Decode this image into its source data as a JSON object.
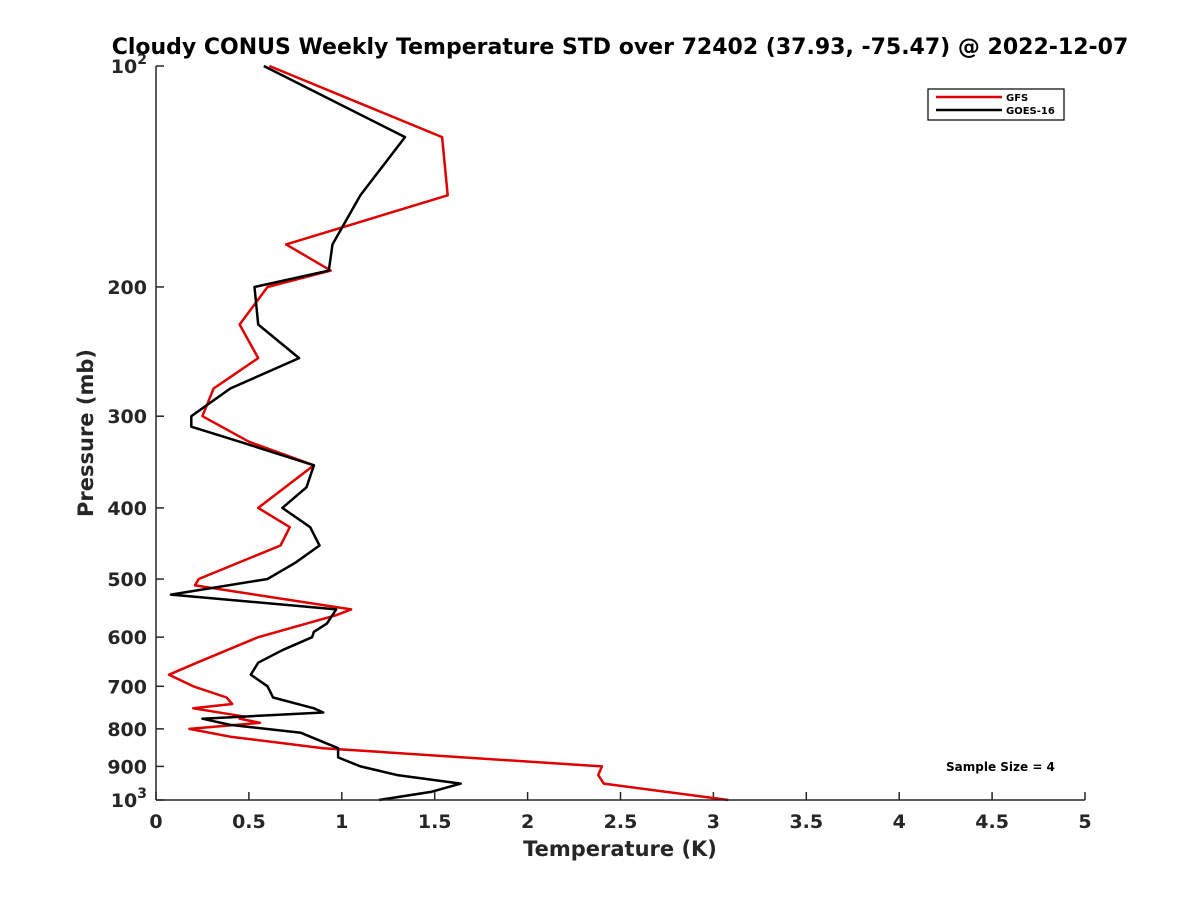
{
  "chart_data": {
    "type": "line",
    "title": "Cloudy CONUS Weekly Temperature STD over 72402 (37.93, -75.47) @ 2022-12-07",
    "xlabel": "Temperature (K)",
    "ylabel": "Pressure (mb)",
    "xlim": [
      0,
      5
    ],
    "ylim": [
      100,
      1000
    ],
    "yscale": "log",
    "y_reversed": true,
    "grid": false,
    "legend_position": "top-right",
    "x_ticks": [
      "0",
      "0.5",
      "1",
      "1.5",
      "2",
      "2.5",
      "3",
      "3.5",
      "4",
      "4.5",
      "5"
    ],
    "x_tick_values": [
      0,
      0.5,
      1,
      1.5,
      2,
      2.5,
      3,
      3.5,
      4,
      4.5,
      5
    ],
    "y_ticks": [
      {
        "value": 100,
        "base": "10",
        "exp": "2"
      },
      {
        "value": 200,
        "label": "200"
      },
      {
        "value": 300,
        "label": "300"
      },
      {
        "value": 400,
        "label": "400"
      },
      {
        "value": 500,
        "label": "500"
      },
      {
        "value": 600,
        "label": "600"
      },
      {
        "value": 700,
        "label": "700"
      },
      {
        "value": 800,
        "label": "800"
      },
      {
        "value": 900,
        "label": "900"
      },
      {
        "value": 1000,
        "base": "10",
        "exp": "3"
      }
    ],
    "annotation": "Sample Size = 4",
    "series": [
      {
        "name": "GFS",
        "color": "#e00000",
        "points": [
          [
            0.61,
            100
          ],
          [
            1.54,
            125
          ],
          [
            1.57,
            150
          ],
          [
            0.7,
            175
          ],
          [
            0.94,
            190
          ],
          [
            0.6,
            200
          ],
          [
            0.45,
            225
          ],
          [
            0.55,
            250
          ],
          [
            0.31,
            275
          ],
          [
            0.25,
            300
          ],
          [
            0.5,
            325
          ],
          [
            0.85,
            350
          ],
          [
            0.55,
            400
          ],
          [
            0.72,
            425
          ],
          [
            0.67,
            450
          ],
          [
            0.23,
            500
          ],
          [
            0.21,
            510
          ],
          [
            1.05,
            550
          ],
          [
            0.97,
            560
          ],
          [
            0.55,
            600
          ],
          [
            0.22,
            650
          ],
          [
            0.07,
            675
          ],
          [
            0.2,
            700
          ],
          [
            0.38,
            725
          ],
          [
            0.41,
            740
          ],
          [
            0.2,
            750
          ],
          [
            0.48,
            770
          ],
          [
            0.45,
            775
          ],
          [
            0.56,
            785
          ],
          [
            0.18,
            800
          ],
          [
            0.4,
            820
          ],
          [
            0.9,
            850
          ],
          [
            2.4,
            900
          ],
          [
            2.38,
            925
          ],
          [
            2.41,
            950
          ],
          [
            3.08,
            1000
          ]
        ]
      },
      {
        "name": "GOES-16",
        "color": "#000000",
        "points": [
          [
            0.58,
            100
          ],
          [
            1.34,
            125
          ],
          [
            1.1,
            150
          ],
          [
            0.95,
            175
          ],
          [
            0.93,
            190
          ],
          [
            0.53,
            200
          ],
          [
            0.55,
            225
          ],
          [
            0.77,
            250
          ],
          [
            0.4,
            275
          ],
          [
            0.19,
            300
          ],
          [
            0.19,
            310
          ],
          [
            0.45,
            325
          ],
          [
            0.85,
            350
          ],
          [
            0.81,
            375
          ],
          [
            0.68,
            400
          ],
          [
            0.83,
            425
          ],
          [
            0.88,
            450
          ],
          [
            0.75,
            475
          ],
          [
            0.6,
            500
          ],
          [
            0.08,
            525
          ],
          [
            0.97,
            550
          ],
          [
            0.92,
            575
          ],
          [
            0.85,
            590
          ],
          [
            0.84,
            600
          ],
          [
            0.68,
            625
          ],
          [
            0.55,
            650
          ],
          [
            0.51,
            675
          ],
          [
            0.6,
            700
          ],
          [
            0.63,
            725
          ],
          [
            0.85,
            750
          ],
          [
            0.9,
            760
          ],
          [
            0.25,
            775
          ],
          [
            0.4,
            790
          ],
          [
            0.78,
            810
          ],
          [
            0.98,
            850
          ],
          [
            0.98,
            875
          ],
          [
            1.1,
            900
          ],
          [
            1.3,
            925
          ],
          [
            1.64,
            950
          ],
          [
            1.48,
            975
          ],
          [
            1.2,
            1000
          ]
        ]
      }
    ]
  }
}
